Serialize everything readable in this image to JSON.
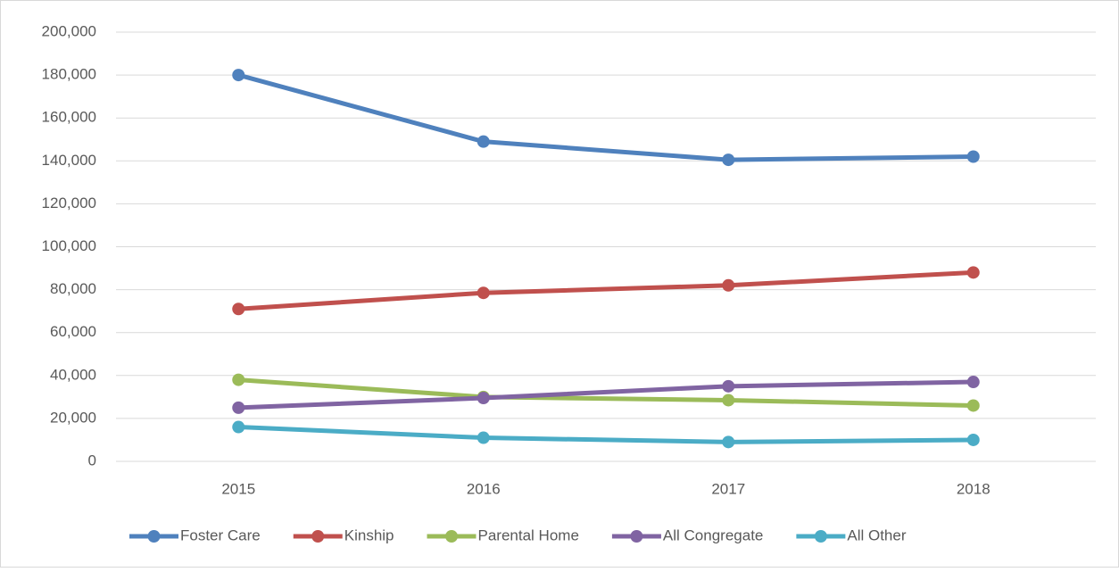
{
  "chart_data": {
    "type": "line",
    "categories": [
      "2015",
      "2016",
      "2017",
      "2018"
    ],
    "series": [
      {
        "name": "Foster Care",
        "color": "#4f81bd",
        "values": [
          180000,
          149000,
          140500,
          142000
        ]
      },
      {
        "name": "Kinship",
        "color": "#c0504d",
        "values": [
          71000,
          78500,
          82000,
          88000
        ]
      },
      {
        "name": "Parental Home",
        "color": "#9bbb59",
        "values": [
          38000,
          30000,
          28500,
          26000
        ]
      },
      {
        "name": "All Congregate",
        "color": "#8064a2",
        "values": [
          25000,
          29500,
          35000,
          37000
        ]
      },
      {
        "name": "All Other",
        "color": "#4bacc6",
        "values": [
          16000,
          11000,
          9000,
          10000
        ]
      }
    ],
    "ylim": [
      0,
      200000
    ],
    "yticks": [
      0,
      {
        "value": 20000,
        "label": "20,000"
      },
      {
        "value": 40000,
        "label": "40,000"
      },
      {
        "value": 60000,
        "label": "60,000"
      },
      {
        "value": 80000,
        "label": "80,000"
      },
      {
        "value": 100000,
        "label": "100,000"
      },
      {
        "value": 120000,
        "label": "120,000"
      },
      {
        "value": 140000,
        "label": "140,000"
      },
      {
        "value": 160000,
        "label": "160,000"
      },
      {
        "value": 180000,
        "label": "180,000"
      },
      {
        "value": 200000,
        "label": "200,000"
      }
    ],
    "grid": true,
    "legend": "bottom"
  }
}
